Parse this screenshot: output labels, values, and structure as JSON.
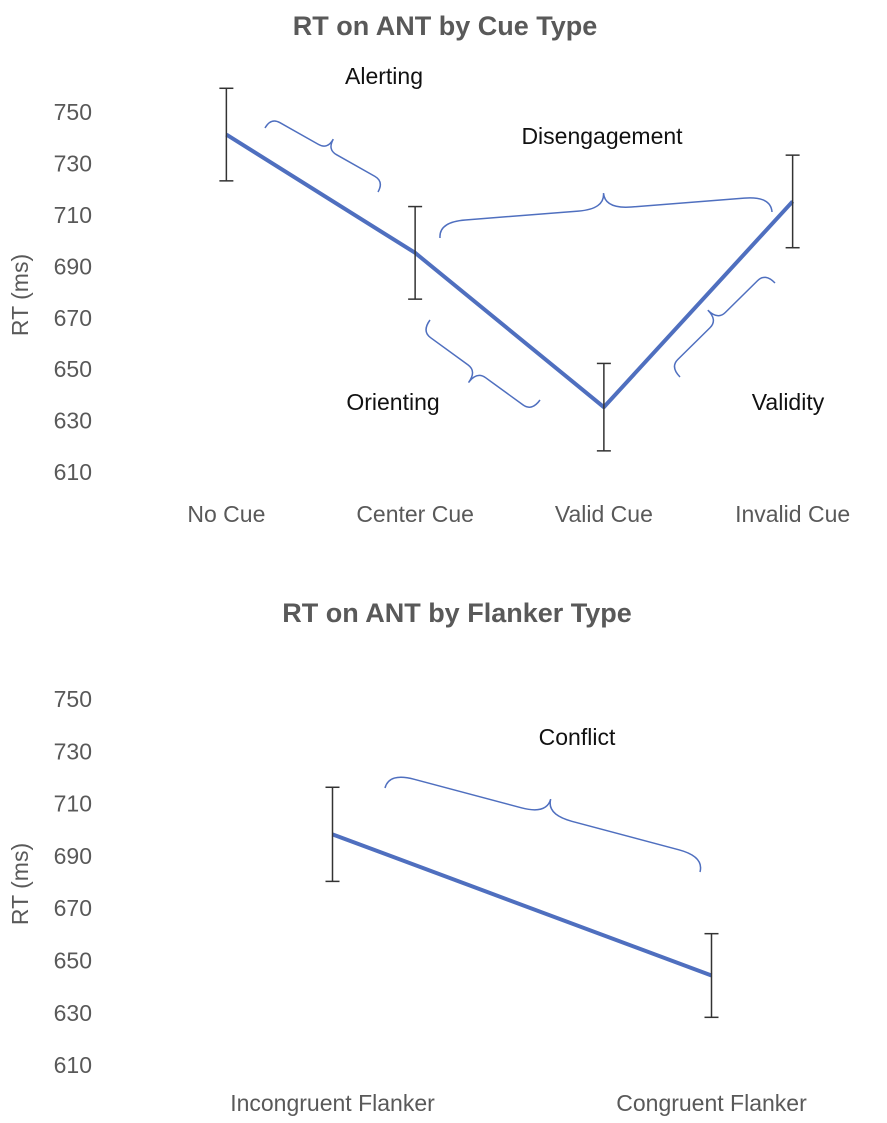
{
  "chart_data": [
    {
      "type": "line",
      "title": "RT on ANT by Cue Type",
      "y_label": "RT (ms)",
      "categories": [
        "No Cue",
        "Center Cue",
        "Valid Cue",
        "Invalid Cue"
      ],
      "values": [
        742,
        696,
        636,
        716
      ],
      "errors": [
        18,
        18,
        17,
        18
      ],
      "color": "#4f6fbf",
      "ylim": [
        610,
        750
      ],
      "yticks": [
        610,
        630,
        650,
        670,
        690,
        710,
        730,
        750
      ],
      "annotations": [
        "Alerting",
        "Disengagement",
        "Orienting",
        "Validity"
      ]
    },
    {
      "type": "line",
      "title": "RT on ANT by Flanker Type",
      "y_label": "RT (ms)",
      "categories": [
        "Incongruent  Flanker",
        "Congruent  Flanker"
      ],
      "values": [
        699,
        645
      ],
      "errors": [
        18,
        16
      ],
      "color": "#4f6fbf",
      "ylim": [
        610,
        750
      ],
      "yticks": [
        610,
        630,
        650,
        670,
        690,
        710,
        730,
        750
      ],
      "annotations": [
        "Conflict"
      ]
    }
  ]
}
